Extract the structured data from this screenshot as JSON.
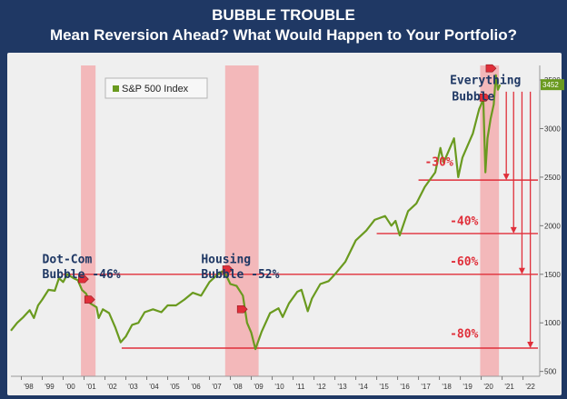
{
  "header": {
    "title_line1": "BUBBLE TROUBLE",
    "title_line2": "Mean Reversion Ahead? What Would Happen to Your Portfolio?"
  },
  "colors": {
    "background": "#1f3864",
    "plot_bg": "#efefef",
    "series": "#6a9a1f",
    "band": "#f4a6a8",
    "line_red": "#e02f3a",
    "annotation_blue": "#1f3864"
  },
  "chart_data": {
    "type": "line",
    "title": "BUBBLE TROUBLE",
    "subtitle": "Mean Reversion Ahead? What Would Happen to Your Portfolio?",
    "xlabel": "",
    "ylabel": "",
    "xlim": [
      1997.5,
      2022.8
    ],
    "ylim": [
      450,
      3650
    ],
    "x_ticks": [
      "'98",
      "'99",
      "'00",
      "'01",
      "'02",
      "'03",
      "'04",
      "'05",
      "'06",
      "'07",
      "'08",
      "'09",
      "'10",
      "'11",
      "'12",
      "'13",
      "'14",
      "'15",
      "'16",
      "'17",
      "'18",
      "'19",
      "'20",
      "'21",
      "'22"
    ],
    "x_tick_values": [
      1998,
      1999,
      2000,
      2001,
      2002,
      2003,
      2004,
      2005,
      2006,
      2007,
      2008,
      2009,
      2010,
      2011,
      2012,
      2013,
      2014,
      2015,
      2016,
      2017,
      2018,
      2019,
      2020,
      2021,
      2022
    ],
    "y_ticks": [
      500,
      1000,
      1500,
      2000,
      2500,
      3000,
      3500
    ],
    "legend": [
      "S&P 500 Index"
    ],
    "last_value_label": "3452",
    "series": [
      {
        "name": "S&P 500 Index",
        "x": [
          1997.5,
          1997.8,
          1998.1,
          1998.4,
          1998.6,
          1998.8,
          1999.0,
          1999.3,
          1999.6,
          1999.8,
          2000.0,
          2000.2,
          2000.5,
          2000.7,
          2000.9,
          2001.1,
          2001.3,
          2001.6,
          2001.7,
          2001.9,
          2002.2,
          2002.5,
          2002.75,
          2003.0,
          2003.3,
          2003.6,
          2003.9,
          2004.3,
          2004.7,
          2005.0,
          2005.4,
          2005.8,
          2006.2,
          2006.6,
          2007.0,
          2007.3,
          2007.6,
          2007.8,
          2008.0,
          2008.3,
          2008.6,
          2008.8,
          2009.0,
          2009.2,
          2009.5,
          2009.9,
          2010.3,
          2010.5,
          2010.8,
          2011.2,
          2011.4,
          2011.7,
          2011.9,
          2012.3,
          2012.7,
          2013.0,
          2013.5,
          2014.0,
          2014.5,
          2014.9,
          2015.4,
          2015.7,
          2015.9,
          2016.1,
          2016.5,
          2016.9,
          2017.3,
          2017.8,
          2018.05,
          2018.2,
          2018.7,
          2018.9,
          2019.1,
          2019.6,
          2019.9,
          2020.1,
          2020.2,
          2020.3,
          2020.45,
          2020.6,
          2020.7,
          2020.8,
          2020.9
        ],
        "y": [
          920,
          1000,
          1060,
          1130,
          1050,
          1180,
          1240,
          1340,
          1330,
          1460,
          1420,
          1500,
          1460,
          1440,
          1340,
          1300,
          1200,
          1160,
          1050,
          1140,
          1100,
          950,
          800,
          860,
          980,
          1000,
          1110,
          1140,
          1110,
          1180,
          1180,
          1240,
          1310,
          1280,
          1420,
          1480,
          1530,
          1490,
          1400,
          1380,
          1280,
          1000,
          900,
          730,
          910,
          1100,
          1150,
          1060,
          1200,
          1320,
          1340,
          1120,
          1250,
          1400,
          1430,
          1500,
          1630,
          1850,
          1950,
          2060,
          2100,
          2000,
          2050,
          1900,
          2150,
          2230,
          2400,
          2550,
          2800,
          2650,
          2900,
          2500,
          2700,
          2950,
          3200,
          3300,
          2550,
          2900,
          3100,
          3250,
          3550,
          3400,
          3452
        ]
      }
    ],
    "shaded_periods": [
      {
        "name": "Dot-Com Bubble",
        "x_start": 2000.85,
        "x_end": 2001.55
      },
      {
        "name": "Housing Bubble",
        "x_start": 2007.75,
        "x_end": 2009.35
      },
      {
        "name": "Everything Bubble",
        "x_start": 2019.95,
        "x_end": 2020.85
      }
    ],
    "horizontal_levels": [
      {
        "label": "-30%",
        "value": 2470,
        "x_start": 2017.0
      },
      {
        "label": "-40%",
        "value": 1920,
        "x_start": 2015.0
      },
      {
        "label": "-60%",
        "value": 1500,
        "x_start": 2000.0
      },
      {
        "label": "-80%",
        "value": 740,
        "x_start": 2002.8
      }
    ],
    "drop_arrows": [
      {
        "x": 2021.2,
        "to": 2470
      },
      {
        "x": 2021.55,
        "to": 1920
      },
      {
        "x": 2021.95,
        "to": 1500
      },
      {
        "x": 2022.35,
        "to": 740
      }
    ],
    "markers": [
      {
        "x": 2000.95,
        "y": 1450
      },
      {
        "x": 2001.25,
        "y": 1240
      },
      {
        "x": 2007.85,
        "y": 1550
      },
      {
        "x": 2008.55,
        "y": 1140
      },
      {
        "x": 2020.15,
        "y": 3320
      },
      {
        "x": 2020.45,
        "y": 3620
      }
    ],
    "annotations": [
      {
        "text": "Dot-Com",
        "x": 1999.0,
        "y": 1615,
        "color": "blue"
      },
      {
        "text": "Bubble -46%",
        "x": 1999.0,
        "y": 1460,
        "color": "blue"
      },
      {
        "text": "Housing",
        "x": 2006.6,
        "y": 1615,
        "color": "blue"
      },
      {
        "text": "Bubble -52%",
        "x": 2006.6,
        "y": 1460,
        "color": "blue"
      },
      {
        "text": "Everything",
        "x": 2018.5,
        "y": 3460,
        "color": "blue"
      },
      {
        "text": "Bubble",
        "x": 2018.6,
        "y": 3290,
        "color": "blue"
      },
      {
        "text": "-30%",
        "x": 2017.3,
        "y": 2615,
        "color": "red"
      },
      {
        "text": "-40%",
        "x": 2018.5,
        "y": 2010,
        "color": "red"
      },
      {
        "text": "-60%",
        "x": 2018.5,
        "y": 1590,
        "color": "red"
      },
      {
        "text": "-80%",
        "x": 2018.5,
        "y": 850,
        "color": "red"
      }
    ]
  }
}
